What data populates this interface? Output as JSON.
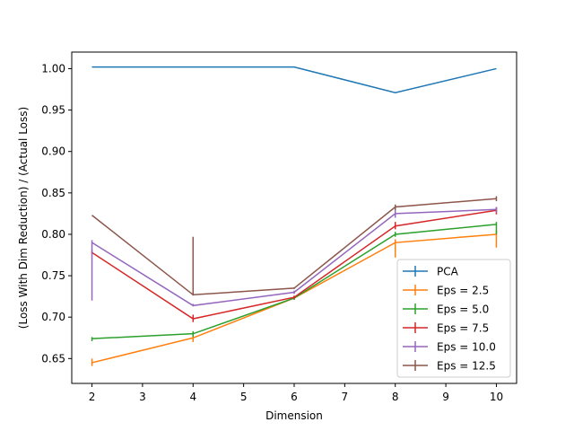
{
  "chart_data": {
    "type": "line",
    "title": "",
    "xlabel": "Dimension",
    "ylabel": "(Loss With Dim Reduction) / (Actual Loss)",
    "xlim": [
      1.6,
      10.4
    ],
    "ylim": [
      0.62,
      1.02
    ],
    "xticks": [
      2,
      3,
      4,
      5,
      6,
      7,
      8,
      9,
      10
    ],
    "yticks": [
      0.65,
      0.7,
      0.75,
      0.8,
      0.85,
      0.9,
      0.95,
      1.0
    ],
    "ytick_labels": [
      "0.65",
      "0.70",
      "0.75",
      "0.80",
      "0.85",
      "0.90",
      "0.95",
      "1.00"
    ],
    "x": [
      2,
      4,
      6,
      8,
      10
    ],
    "legend_position": "lower-right",
    "grid": false,
    "series": [
      {
        "name": "PCA",
        "color": "#1f77b4",
        "values": [
          1.002,
          1.002,
          1.002,
          0.971,
          1.0
        ],
        "yerr_low": [
          1.002,
          1.002,
          1.002,
          0.971,
          1.0
        ],
        "yerr_high": [
          1.002,
          1.002,
          1.002,
          0.971,
          1.0
        ]
      },
      {
        "name": "Eps = 2.5",
        "color": "#ff7f0e",
        "values": [
          0.645,
          0.675,
          0.723,
          0.79,
          0.8
        ],
        "yerr_low": [
          0.641,
          0.67,
          0.721,
          0.772,
          0.784
        ],
        "yerr_high": [
          0.65,
          0.679,
          0.725,
          0.794,
          0.805
        ]
      },
      {
        "name": "Eps = 5.0",
        "color": "#2ca02c",
        "values": [
          0.674,
          0.68,
          0.723,
          0.8,
          0.812
        ],
        "yerr_low": [
          0.671,
          0.676,
          0.721,
          0.797,
          0.8
        ],
        "yerr_high": [
          0.676,
          0.683,
          0.725,
          0.803,
          0.815
        ]
      },
      {
        "name": "Eps = 7.5",
        "color": "#d62728",
        "values": [
          0.778,
          0.698,
          0.724,
          0.81,
          0.829
        ],
        "yerr_low": [
          0.776,
          0.694,
          0.722,
          0.806,
          0.824
        ],
        "yerr_high": [
          0.781,
          0.703,
          0.726,
          0.815,
          0.833
        ]
      },
      {
        "name": "Eps = 10.0",
        "color": "#9467bd",
        "values": [
          0.79,
          0.714,
          0.73,
          0.825,
          0.83
        ],
        "yerr_low": [
          0.72,
          0.713,
          0.728,
          0.82,
          0.826
        ],
        "yerr_high": [
          0.793,
          0.716,
          0.732,
          0.829,
          0.833
        ]
      },
      {
        "name": "Eps = 12.5",
        "color": "#8c564b",
        "values": [
          0.823,
          0.727,
          0.735,
          0.833,
          0.843
        ],
        "yerr_low": [
          0.823,
          0.726,
          0.734,
          0.829,
          0.84
        ],
        "yerr_high": [
          0.823,
          0.797,
          0.736,
          0.836,
          0.846
        ]
      }
    ]
  }
}
